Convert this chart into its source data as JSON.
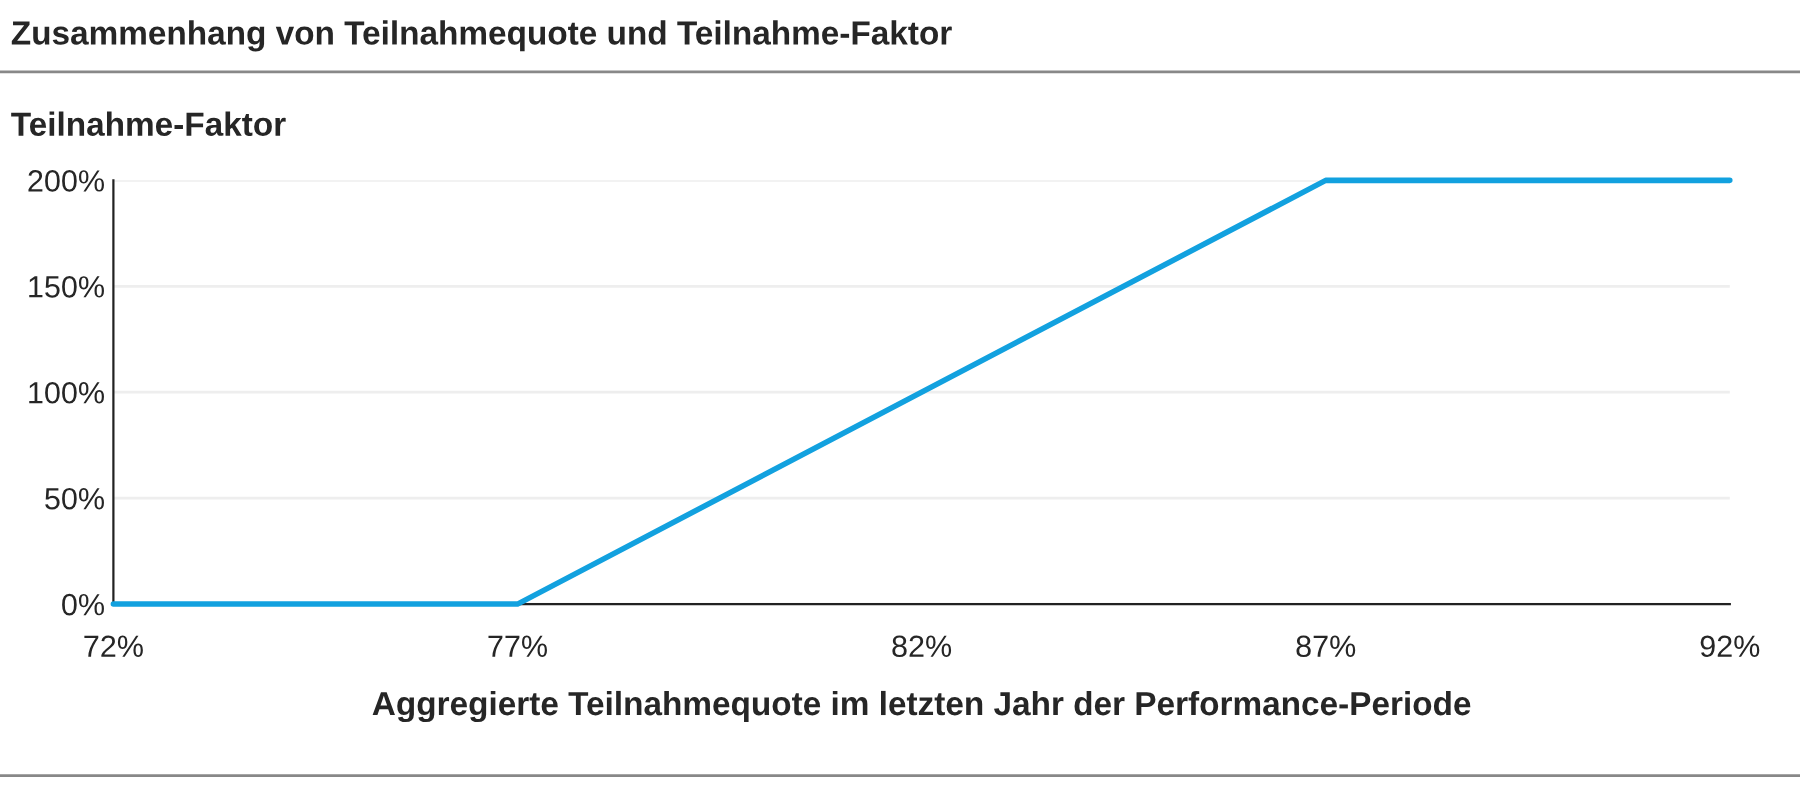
{
  "chart_data": {
    "type": "line",
    "title": "Zusammenhang von Teilnahmequote und Teilnahme-Faktor",
    "ylabel": "Teilnahme-Faktor",
    "xlabel": "Aggregierte Teilnahmequote im letzten Jahr der Performance-Periode",
    "x": [
      72,
      77,
      87,
      92
    ],
    "series": [
      {
        "color": "#12a1df",
        "values": [
          0,
          0,
          200,
          200
        ]
      }
    ],
    "xlim": [
      72,
      92
    ],
    "xticks": [
      {
        "value": 72,
        "label": "72%"
      },
      {
        "value": 77,
        "label": "77%"
      },
      {
        "value": 82,
        "label": "82%"
      },
      {
        "value": 87,
        "label": "87%"
      },
      {
        "value": 92,
        "label": "92%"
      }
    ],
    "ylim": [
      0,
      200
    ],
    "yticks": [
      {
        "value": 0,
        "label": "0%"
      },
      {
        "value": 50,
        "label": "50%"
      },
      {
        "value": 100,
        "label": "100%"
      },
      {
        "value": 150,
        "label": "150%"
      },
      {
        "value": 200,
        "label": "200%"
      }
    ],
    "grid": "y",
    "legend": false,
    "marker": "none",
    "line_style": "solid"
  }
}
